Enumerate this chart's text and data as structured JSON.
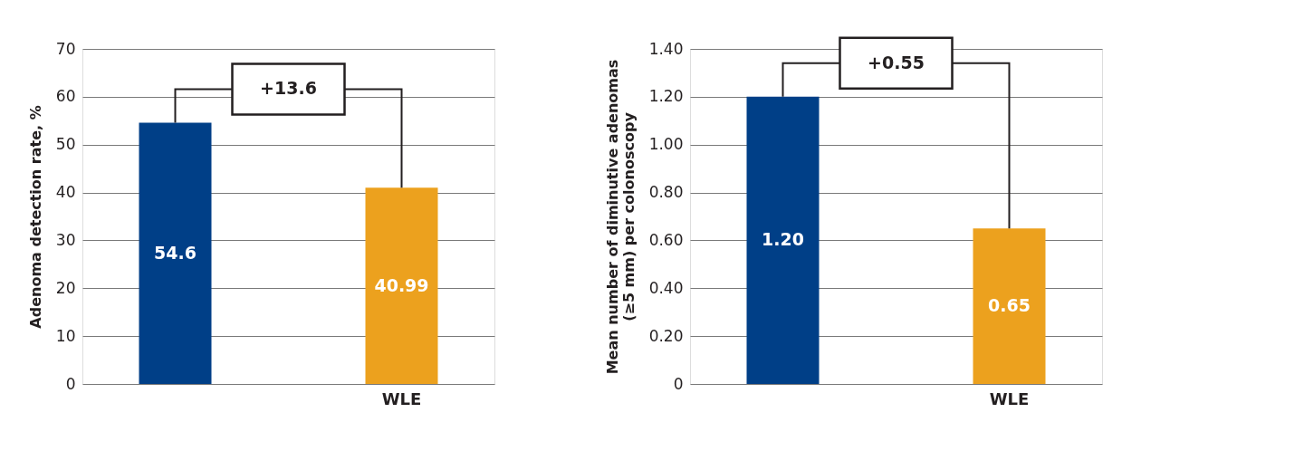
{
  "chart_data": [
    {
      "type": "bar",
      "ylabel": "Adenoma detection rate, %",
      "categories": [
        null,
        "WLE"
      ],
      "values": [
        54.6,
        40.99
      ],
      "colors": [
        "#003f87",
        "#eca11e"
      ],
      "data_labels": true,
      "ylim": [
        0,
        70
      ],
      "yticks": [
        0,
        10,
        20,
        30,
        40,
        50,
        60,
        70
      ],
      "grid": "y",
      "legend": false,
      "annotations": [
        "+13.6"
      ]
    },
    {
      "type": "bar",
      "ylabel": "Mean number of diminutive adenomas\n(≥5 mm) per colonoscopy",
      "categories": [
        null,
        "WLE"
      ],
      "values": [
        1.2,
        0.65
      ],
      "colors": [
        "#003f87",
        "#eca11e"
      ],
      "value_labels": [
        "1.20",
        "0.65"
      ],
      "ylim": [
        0,
        1.4
      ],
      "yticks": [
        0,
        {
          "value": 0.2,
          "label": "0.20"
        },
        {
          "value": 0.4,
          "label": "0.40"
        },
        {
          "value": 0.6,
          "label": "0.60"
        },
        {
          "value": 0.8,
          "label": "0.80"
        },
        {
          "value": 1.0,
          "label": "1.00"
        },
        {
          "value": 1.2,
          "label": "1.20"
        },
        {
          "value": 1.4,
          "label": "1.40"
        }
      ],
      "grid": "y",
      "legend": false,
      "annotations": [
        "+0.55"
      ]
    }
  ]
}
